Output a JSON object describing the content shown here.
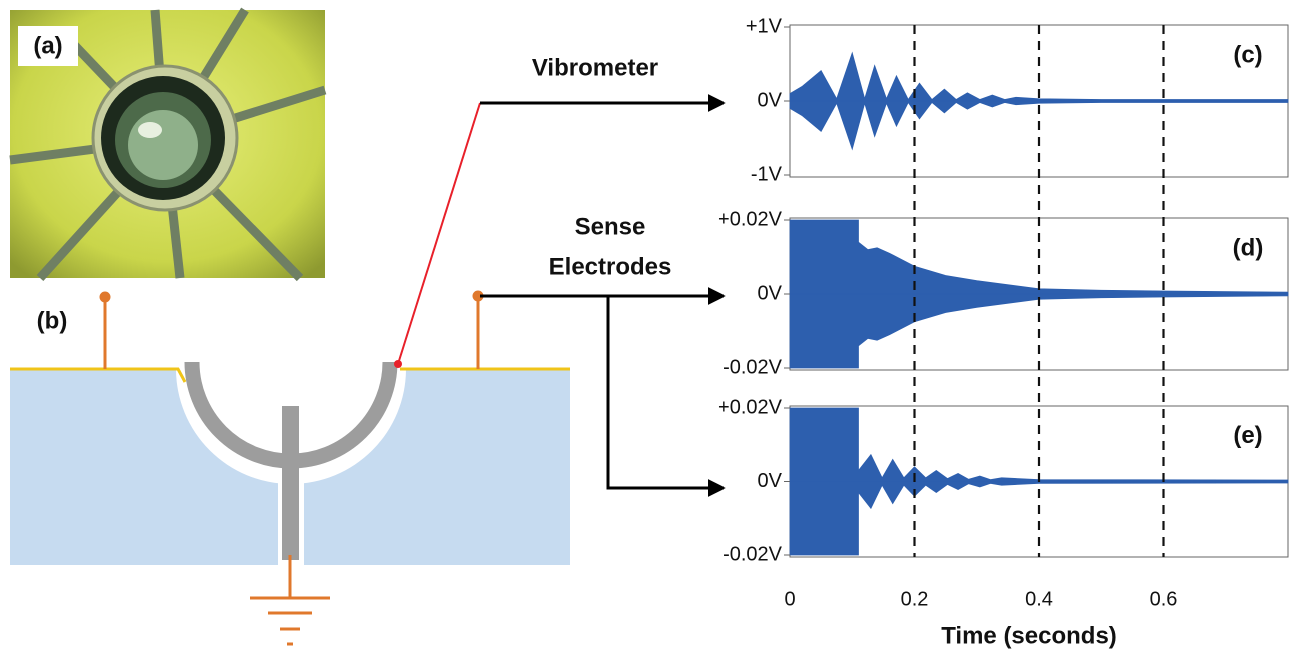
{
  "figure": {
    "panel_labels": {
      "a": "(a)",
      "b": "(b)"
    },
    "annotations": {
      "vibrometer": "Vibrometer",
      "sense": [
        "Sense",
        "Electrodes"
      ]
    }
  },
  "chart_data": [
    {
      "type": "area",
      "label": "(c)",
      "color": "#2d5fae",
      "symmetric": true,
      "x": [
        0,
        0.02,
        0.05,
        0.075,
        0.1,
        0.12,
        0.136,
        0.155,
        0.171,
        0.19,
        0.208,
        0.228,
        0.248,
        0.267,
        0.285,
        0.305,
        0.325,
        0.345,
        0.363,
        0.4,
        0.5,
        0.8
      ],
      "values": [
        0.1,
        0.2,
        0.41,
        0.03,
        0.65,
        0.03,
        0.48,
        0.03,
        0.34,
        0.02,
        0.24,
        0.02,
        0.16,
        0.02,
        0.11,
        0.02,
        0.08,
        0.02,
        0.05,
        0.03,
        0.02,
        0.02
      ],
      "xlim": [
        0,
        0.8
      ],
      "ylim": [
        -1,
        1
      ],
      "yticks": [
        {
          "value": 1,
          "label": "+1V"
        },
        {
          "value": 0,
          "label": "0V"
        },
        {
          "value": -1,
          "label": "-1V"
        }
      ]
    },
    {
      "type": "area",
      "label": "(d)",
      "color": "#2d5fae",
      "symmetric": true,
      "x": [
        0,
        0.11,
        0.11,
        0.125,
        0.14,
        0.16,
        0.2,
        0.25,
        0.3,
        0.4,
        0.5,
        0.6,
        0.8
      ],
      "values": [
        0.02,
        0.02,
        0.014,
        0.012,
        0.0125,
        0.011,
        0.0075,
        0.005,
        0.0036,
        0.0014,
        0.001,
        0.0008,
        0.0005
      ],
      "xlim": [
        0,
        0.8
      ],
      "ylim": [
        -0.02,
        0.02
      ],
      "yticks": [
        {
          "value": 0.02,
          "label": "+0.02V"
        },
        {
          "value": 0,
          "label": "0V"
        },
        {
          "value": -0.02,
          "label": "-0.02V"
        }
      ]
    },
    {
      "type": "area",
      "label": "(e)",
      "color": "#2d5fae",
      "symmetric": true,
      "x": [
        0,
        0.11,
        0.11,
        0.13,
        0.148,
        0.165,
        0.183,
        0.2,
        0.218,
        0.235,
        0.253,
        0.27,
        0.287,
        0.305,
        0.322,
        0.34,
        0.4,
        0.8
      ],
      "values": [
        0.02,
        0.02,
        0.003,
        0.0073,
        0.001,
        0.006,
        0.001,
        0.004,
        0.001,
        0.003,
        0.0008,
        0.0022,
        0.0006,
        0.0015,
        0.0005,
        0.001,
        0.0005,
        0.0004
      ],
      "xlim": [
        0,
        0.8
      ],
      "ylim": [
        -0.02,
        0.02
      ],
      "yticks": [
        {
          "value": 0.02,
          "label": "+0.02V"
        },
        {
          "value": 0,
          "label": "0V"
        },
        {
          "value": -0.02,
          "label": "-0.02V"
        }
      ],
      "xticks": [
        0,
        0.2,
        0.4,
        0.6
      ],
      "xlabel": "Time (seconds)",
      "grid": true
    }
  ]
}
